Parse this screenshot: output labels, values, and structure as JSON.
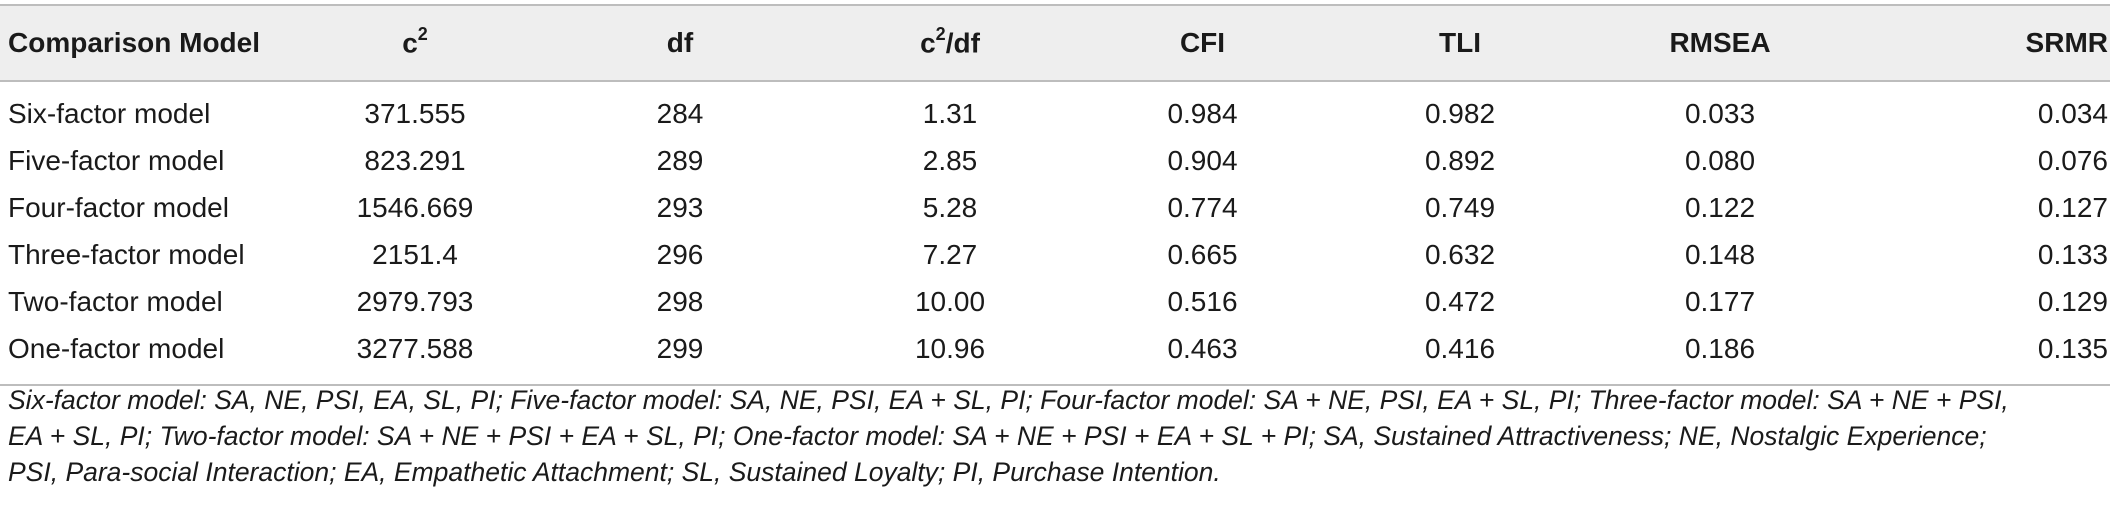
{
  "table": {
    "headers": {
      "model": "Comparison Model",
      "chi_base": "c",
      "chi_sup": "2",
      "df": "df",
      "ratio_base": "c",
      "ratio_sup": "2",
      "ratio_tail": "/df",
      "cfi": "CFI",
      "tli": "TLI",
      "rmsea": "RMSEA",
      "srmr": "SRMR"
    },
    "rows": [
      {
        "model": "Six-factor model",
        "chi2": "371.555",
        "df": "284",
        "ratio": "1.31",
        "cfi": "0.984",
        "tli": "0.982",
        "rmsea": "0.033",
        "srmr": "0.034"
      },
      {
        "model": "Five-factor model",
        "chi2": "823.291",
        "df": "289",
        "ratio": "2.85",
        "cfi": "0.904",
        "tli": "0.892",
        "rmsea": "0.080",
        "srmr": "0.076"
      },
      {
        "model": "Four-factor model",
        "chi2": "1546.669",
        "df": "293",
        "ratio": "5.28",
        "cfi": "0.774",
        "tli": "0.749",
        "rmsea": "0.122",
        "srmr": "0.127"
      },
      {
        "model": "Three-factor model",
        "chi2": "2151.4",
        "df": "296",
        "ratio": "7.27",
        "cfi": "0.665",
        "tli": "0.632",
        "rmsea": "0.148",
        "srmr": "0.133"
      },
      {
        "model": "Two-factor model",
        "chi2": "2979.793",
        "df": "298",
        "ratio": "10.00",
        "cfi": "0.516",
        "tli": "0.472",
        "rmsea": "0.177",
        "srmr": "0.129"
      },
      {
        "model": "One-factor model",
        "chi2": "3277.588",
        "df": "299",
        "ratio": "10.96",
        "cfi": "0.463",
        "tli": "0.416",
        "rmsea": "0.186",
        "srmr": "0.135"
      }
    ]
  },
  "footnote": {
    "line1": "Six-factor model: SA, NE, PSI, EA, SL, PI; Five-factor model: SA, NE, PSI, EA + SL, PI; Four-factor model: SA + NE, PSI, EA + SL, PI; Three-factor model: SA + NE + PSI,",
    "line2": "EA + SL, PI; Two-factor model: SA + NE + PSI + EA + SL, PI; One-factor model: SA + NE + PSI + EA + SL + PI; SA, Sustained Attractiveness; NE, Nostalgic Experience;",
    "line3": "PSI, Para-social Interaction; EA, Empathetic Attachment; SL, Sustained Loyalty; PI, Purchase Intention."
  }
}
